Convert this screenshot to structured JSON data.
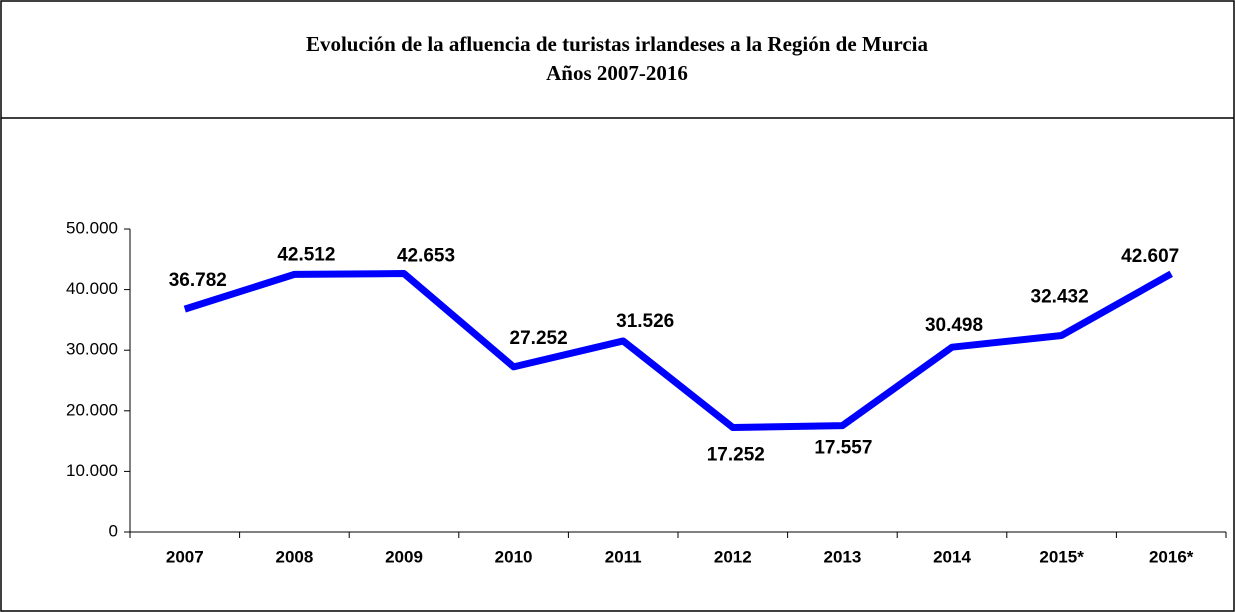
{
  "chart_data": {
    "type": "line",
    "title": "Evolución de la afluencia de turistas irlandeses a la Región de Murcia",
    "subtitle": "Años 2007-2016",
    "categories": [
      "2007",
      "2008",
      "2009",
      "2010",
      "2011",
      "2012",
      "2013",
      "2014",
      "2015*",
      "2016*"
    ],
    "series": [
      {
        "name": "Turistas irlandeses",
        "color": "#0000ff",
        "values": [
          36782,
          42512,
          42653,
          27252,
          31526,
          17252,
          17557,
          30498,
          32432,
          42607
        ],
        "value_labels": [
          "36.782",
          "42.512",
          "42.653",
          "27.252",
          "31.526",
          "17.252",
          "17.557",
          "30.498",
          "32.432",
          "42.607"
        ]
      }
    ],
    "ylim": [
      0,
      50000
    ],
    "yticks": [
      0,
      {
        "value": 10000,
        "label": "10.000"
      },
      {
        "value": 20000,
        "label": "20.000"
      },
      {
        "value": 30000,
        "label": "30.000"
      },
      {
        "value": 40000,
        "label": "40.000"
      },
      {
        "value": 50000,
        "label": "50.000"
      }
    ],
    "grid": false
  }
}
